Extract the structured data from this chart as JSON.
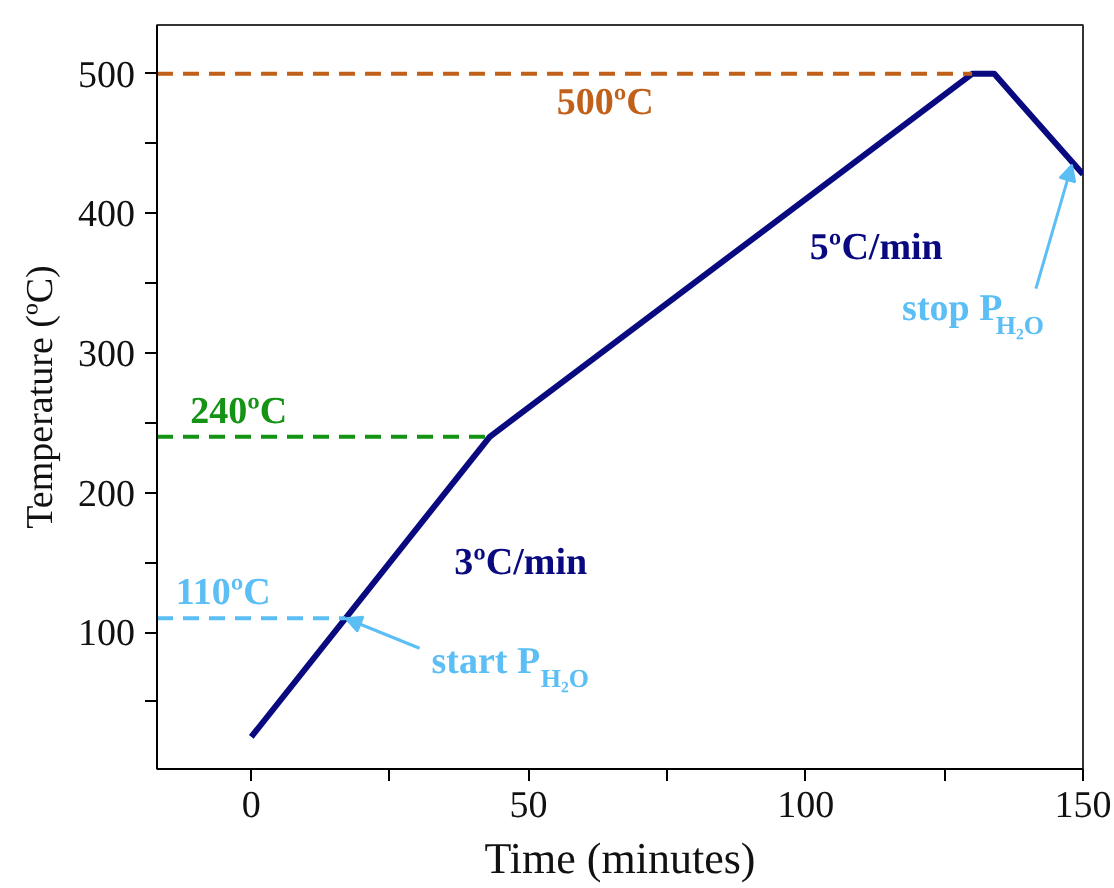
{
  "chart_data": {
    "type": "line",
    "xlabel": "Time (minutes)",
    "ylabel": "Temperature (ºC)",
    "x": [
      0,
      43,
      130,
      134,
      150
    ],
    "series": [
      {
        "color": "#0a0a80",
        "values": [
          25,
          240,
          500,
          500,
          428
        ]
      }
    ],
    "xlim": [
      -17,
      150
    ],
    "ylim": [
      2,
      535
    ],
    "xticks": [
      0,
      {
        "value": 25,
        "label": null
      },
      50,
      {
        "value": 75,
        "label": null
      },
      100,
      {
        "value": 125,
        "label": null
      },
      150
    ],
    "yticks": [
      {
        "value": 50,
        "label": null
      },
      100,
      {
        "value": 150,
        "label": null
      },
      200,
      {
        "value": 250,
        "label": null
      },
      300,
      {
        "value": 350,
        "label": null
      },
      400,
      {
        "value": 450,
        "label": null
      },
      500
    ],
    "ref_lines": [
      {
        "axis": "y",
        "value": 500,
        "label": "500ºC",
        "color": "#c0601a",
        "line_style": "dashed"
      },
      {
        "axis": "y",
        "value": 240,
        "label": "240ºC",
        "color": "#159315",
        "line_style": "dashed"
      },
      {
        "axis": "y",
        "value": 110,
        "label": "110ºC",
        "color": "#5bbef5",
        "line_style": "dashed"
      }
    ],
    "annotations": [
      "3ºC/min",
      "5ºC/min",
      {
        "text": "start P$_{H₂O}$",
        "x": 17,
        "y": 110
      },
      {
        "text": "stop P$_{H₂O}$",
        "x": 148,
        "y": 435
      }
    ],
    "grid": false,
    "marker": "none",
    "line_style": "solid"
  }
}
